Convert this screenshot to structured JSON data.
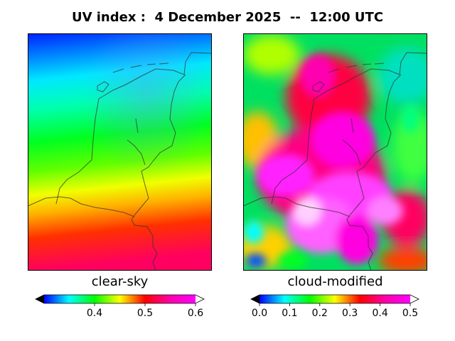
{
  "title": "UV index :  4 December 2025  --  12:00 UTC",
  "panels": [
    {
      "label": "clear-sky",
      "colorbar": {
        "min": 0.3,
        "max": 0.6,
        "ticks": [
          "0.4",
          "0.5",
          "0.6"
        ],
        "tick_values": [
          0.4,
          0.5,
          0.6
        ],
        "extend": "both"
      }
    },
    {
      "label": "cloud-modified",
      "colorbar": {
        "min": 0.0,
        "max": 0.5,
        "ticks": [
          "0.0",
          "0.1",
          "0.2",
          "0.3",
          "0.4",
          "0.5"
        ],
        "tick_values": [
          0.0,
          0.1,
          0.2,
          0.3,
          0.4,
          0.5
        ],
        "extend": "both"
      }
    }
  ],
  "colormap": [
    "#000000",
    "#0000ff",
    "#00ffff",
    "#00ff00",
    "#ffff00",
    "#ff0000",
    "#ff00aa",
    "#ff00ff",
    "#ffffff"
  ]
}
